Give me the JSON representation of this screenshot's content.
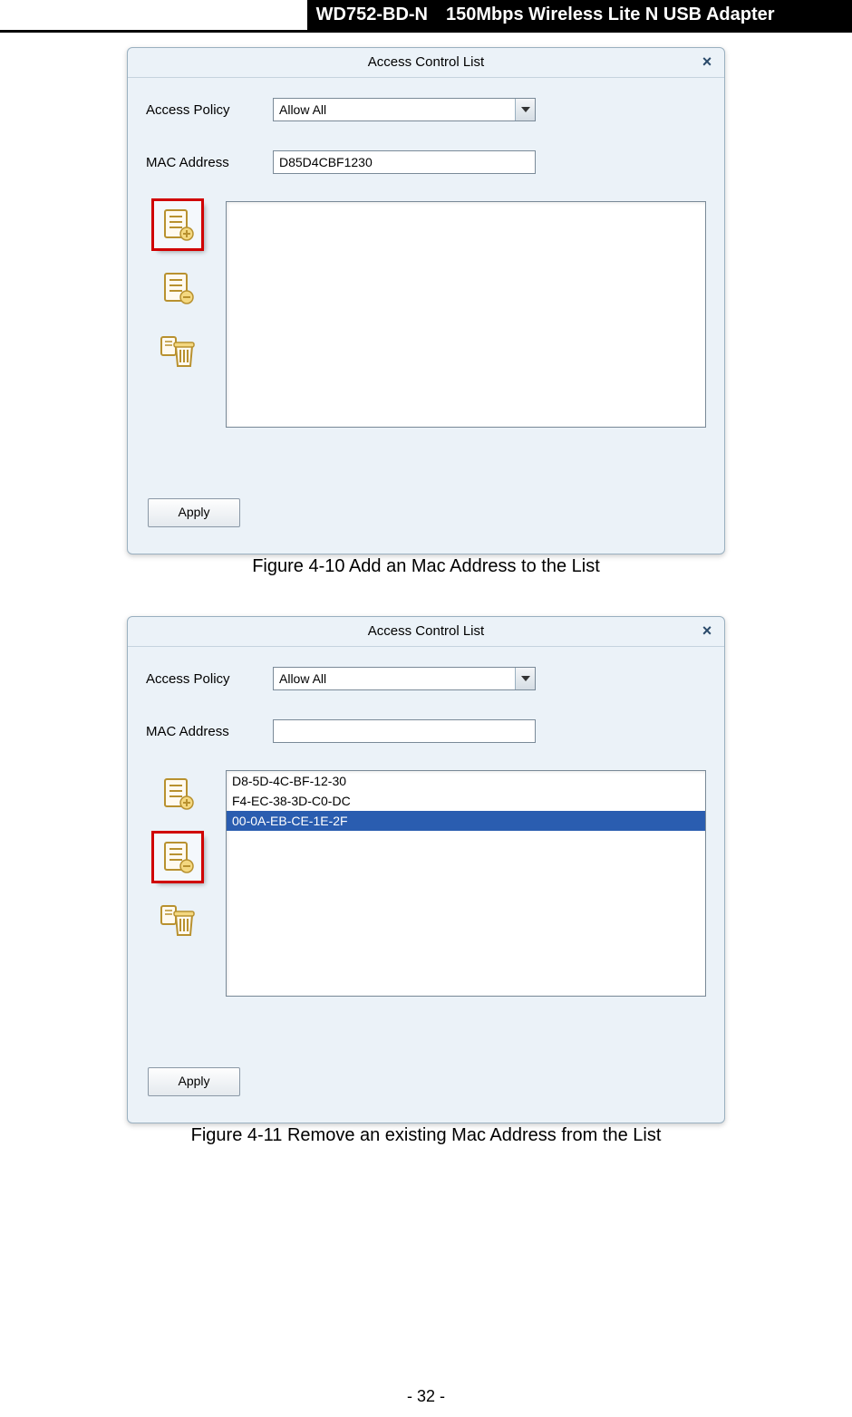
{
  "header": {
    "model": "WD752-BD-N",
    "title": "150Mbps Wireless Lite N USB Adapter"
  },
  "footer": {
    "page": "- 32 -"
  },
  "captions": {
    "fig1": "Figure 4-10 Add an Mac Address to the List",
    "fig2": "Figure 4-11 Remove an existing Mac Address from the List"
  },
  "dialog": {
    "title": "Access Control List",
    "close_glyph": "×",
    "labels": {
      "policy": "Access Policy",
      "mac": "MAC Address"
    },
    "policy_value": "Allow All",
    "apply_label": "Apply"
  },
  "fig1": {
    "mac_value": "D85D4CBF1230",
    "list_items": [],
    "highlighted_icon": "add"
  },
  "fig2": {
    "mac_value": "",
    "list_items": [
      {
        "text": "D8-5D-4C-BF-12-30",
        "selected": false
      },
      {
        "text": "F4-EC-38-3D-C0-DC",
        "selected": false
      },
      {
        "text": "00-0A-EB-CE-1E-2F",
        "selected": true
      }
    ],
    "highlighted_icon": "remove"
  },
  "colors": {
    "dialog_bg": "#ebf2f8",
    "dialog_border": "#9ab0c0",
    "highlight_border": "#d00000",
    "selection_bg": "#2a5db0",
    "icon_stroke": "#b8912f",
    "icon_fill": "#f4d880"
  }
}
